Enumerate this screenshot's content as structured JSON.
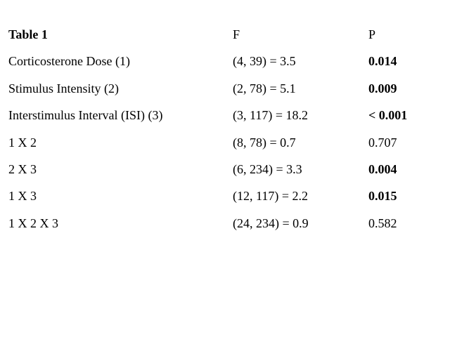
{
  "table": {
    "header": [
      "Table 1",
      "F",
      "P"
    ],
    "header_bold": [
      true,
      false,
      false
    ],
    "rows": [
      [
        "Corticosterone Dose (1)",
        "(4, 39) = 3.5",
        "0.014"
      ],
      [
        "Stimulus Intensity (2)",
        "(2, 78) = 5.1",
        "0.009"
      ],
      [
        "Interstimulus Interval (ISI) (3)",
        "(3, 117) = 18.2",
        "< 0.001"
      ],
      [
        "1 X 2",
        "(8, 78) = 0.7",
        "0.707"
      ],
      [
        "2 X 3",
        "(6, 234) = 3.3",
        "0.004"
      ],
      [
        "1 X 3",
        "(12, 117) = 2.2",
        "0.015"
      ],
      [
        "1 X 2 X 3",
        "(24, 234) = 0.9",
        "0.582"
      ]
    ],
    "p_bold": [
      true,
      true,
      true,
      false,
      true,
      true,
      false
    ]
  }
}
